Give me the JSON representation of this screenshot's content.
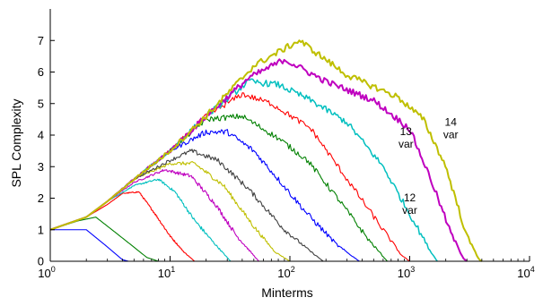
{
  "chart_data": {
    "type": "line",
    "title": "",
    "xlabel": "Minterms",
    "ylabel": "SPL Complexity",
    "xscale": "log",
    "xlim": [
      1,
      10000
    ],
    "ylim": [
      0,
      8
    ],
    "grid": false,
    "legend": "none",
    "x_ticks": [
      {
        "base": "10",
        "exp": "0",
        "value": 1
      },
      {
        "base": "10",
        "exp": "1",
        "value": 10
      },
      {
        "base": "10",
        "exp": "2",
        "value": 100
      },
      {
        "base": "10",
        "exp": "3",
        "value": 1000
      },
      {
        "base": "10",
        "exp": "4",
        "value": 10000
      }
    ],
    "y_ticks": [
      "0",
      "1",
      "2",
      "3",
      "4",
      "5",
      "6",
      "7"
    ],
    "annotations": [
      {
        "lines": [
          "14",
          "var"
        ],
        "x": 2200,
        "y": 4.3
      },
      {
        "lines": [
          "13",
          "var"
        ],
        "x": 930,
        "y": 4.0
      },
      {
        "lines": [
          "12",
          "var"
        ],
        "x": 1000,
        "y": 1.9
      }
    ],
    "series": [
      {
        "color": "#0000ff",
        "width": 1.1,
        "noise": 0.0,
        "points": [
          [
            1,
            1
          ],
          [
            2,
            1
          ],
          [
            2.9,
            0.5
          ],
          [
            4,
            0.05
          ],
          [
            4.5,
            0
          ]
        ]
      },
      {
        "color": "#008000",
        "width": 1.1,
        "noise": 0.0,
        "points": [
          [
            1,
            1
          ],
          [
            1.7,
            1.28
          ],
          [
            2.4,
            1.4
          ],
          [
            3.4,
            0.95
          ],
          [
            4.8,
            0.5
          ],
          [
            6.4,
            0.12
          ],
          [
            8,
            0
          ]
        ]
      },
      {
        "color": "#ff0000",
        "width": 1.1,
        "noise": 0.06,
        "points": [
          [
            1,
            1
          ],
          [
            2,
            1.4
          ],
          [
            3,
            1.8
          ],
          [
            4,
            2.15
          ],
          [
            5.5,
            2.2
          ],
          [
            7.5,
            1.5
          ],
          [
            10,
            0.8
          ],
          [
            13,
            0.3
          ],
          [
            16,
            0
          ]
        ]
      },
      {
        "color": "#00bfbf",
        "width": 1.1,
        "noise": 0.06,
        "points": [
          [
            1,
            1
          ],
          [
            2,
            1.4
          ],
          [
            3,
            1.9
          ],
          [
            5,
            2.4
          ],
          [
            8,
            2.6
          ],
          [
            11,
            2.2
          ],
          [
            16,
            1.3
          ],
          [
            23,
            0.6
          ],
          [
            32,
            0
          ]
        ]
      },
      {
        "color": "#bf00bf",
        "width": 1.1,
        "noise": 0.07,
        "points": [
          [
            1,
            1
          ],
          [
            2,
            1.4
          ],
          [
            3,
            1.9
          ],
          [
            5,
            2.5
          ],
          [
            9,
            2.9
          ],
          [
            15,
            2.7
          ],
          [
            24,
            1.8
          ],
          [
            36,
            0.8
          ],
          [
            55,
            0
          ]
        ]
      },
      {
        "color": "#bfbf00",
        "width": 1.1,
        "noise": 0.07,
        "points": [
          [
            1,
            1
          ],
          [
            2,
            1.4
          ],
          [
            3,
            1.9
          ],
          [
            5,
            2.6
          ],
          [
            10,
            3.1
          ],
          [
            16,
            3.1
          ],
          [
            28,
            2.4
          ],
          [
            50,
            1.1
          ],
          [
            75,
            0.3
          ],
          [
            100,
            0
          ]
        ]
      },
      {
        "color": "#404040",
        "width": 1.1,
        "noise": 0.08,
        "points": [
          [
            1,
            1
          ],
          [
            2,
            1.4
          ],
          [
            3,
            1.9
          ],
          [
            5,
            2.6
          ],
          [
            10,
            3.2
          ],
          [
            15,
            3.5
          ],
          [
            25,
            3.2
          ],
          [
            45,
            2.3
          ],
          [
            90,
            1.0
          ],
          [
            150,
            0.3
          ],
          [
            190,
            0
          ]
        ]
      },
      {
        "color": "#0000ff",
        "width": 1.1,
        "noise": 0.09,
        "points": [
          [
            1,
            1
          ],
          [
            2,
            1.4
          ],
          [
            3,
            1.9
          ],
          [
            5,
            2.6
          ],
          [
            10,
            3.5
          ],
          [
            20,
            4.1
          ],
          [
            30,
            4.1
          ],
          [
            50,
            3.5
          ],
          [
            80,
            2.6
          ],
          [
            140,
            1.5
          ],
          [
            250,
            0.5
          ],
          [
            380,
            0
          ]
        ]
      },
      {
        "color": "#008000",
        "width": 1.1,
        "noise": 0.09,
        "points": [
          [
            1,
            1
          ],
          [
            2,
            1.4
          ],
          [
            3,
            1.9
          ],
          [
            5,
            2.6
          ],
          [
            10,
            3.5
          ],
          [
            20,
            4.5
          ],
          [
            40,
            4.6
          ],
          [
            80,
            3.9
          ],
          [
            140,
            3.2
          ],
          [
            250,
            2.0
          ],
          [
            450,
            0.7
          ],
          [
            650,
            0
          ]
        ]
      },
      {
        "color": "#ff0000",
        "width": 1.1,
        "noise": 0.09,
        "points": [
          [
            1,
            1
          ],
          [
            2,
            1.4
          ],
          [
            3,
            1.9
          ],
          [
            5,
            2.6
          ],
          [
            10,
            3.5
          ],
          [
            20,
            4.6
          ],
          [
            40,
            5.3
          ],
          [
            70,
            5.0
          ],
          [
            150,
            4.2
          ],
          [
            300,
            2.6
          ],
          [
            550,
            1.2
          ],
          [
            850,
            0.2
          ],
          [
            1000,
            0
          ]
        ]
      },
      {
        "color": "#00bfbf",
        "width": 1.5,
        "noise": 0.1,
        "points": [
          [
            1,
            1
          ],
          [
            2,
            1.4
          ],
          [
            3,
            1.9
          ],
          [
            5,
            2.6
          ],
          [
            10,
            3.5
          ],
          [
            20,
            4.6
          ],
          [
            45,
            5.7
          ],
          [
            80,
            5.6
          ],
          [
            150,
            5.1
          ],
          [
            300,
            4.4
          ],
          [
            600,
            3.0
          ],
          [
            1000,
            1.5
          ],
          [
            1500,
            0.3
          ],
          [
            1700,
            0
          ]
        ]
      },
      {
        "color": "#bf00bf",
        "width": 2.0,
        "noise": 0.1,
        "points": [
          [
            1,
            1
          ],
          [
            2,
            1.4
          ],
          [
            3,
            1.9
          ],
          [
            5,
            2.6
          ],
          [
            10,
            3.5
          ],
          [
            20,
            4.6
          ],
          [
            45,
            5.8
          ],
          [
            90,
            6.4
          ],
          [
            200,
            5.7
          ],
          [
            500,
            5.1
          ],
          [
            1000,
            4.2
          ],
          [
            1500,
            2.6
          ],
          [
            2200,
            0.9
          ],
          [
            2800,
            0.1
          ],
          [
            3000,
            0
          ]
        ]
      },
      {
        "color": "#bfbf00",
        "width": 2.0,
        "noise": 0.1,
        "points": [
          [
            1,
            1
          ],
          [
            2,
            1.4
          ],
          [
            3,
            1.9
          ],
          [
            5,
            2.6
          ],
          [
            10,
            3.5
          ],
          [
            20,
            4.6
          ],
          [
            50,
            6.2
          ],
          [
            120,
            7.0
          ],
          [
            300,
            5.9
          ],
          [
            800,
            5.2
          ],
          [
            1300,
            4.5
          ],
          [
            2000,
            3.0
          ],
          [
            3000,
            0.8
          ],
          [
            3800,
            0.05
          ],
          [
            4000,
            0
          ]
        ]
      }
    ]
  }
}
